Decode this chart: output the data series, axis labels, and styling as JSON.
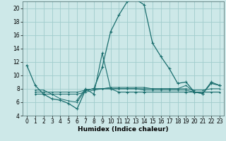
{
  "xlabel": "Humidex (Indice chaleur)",
  "bg_color": "#cde8e8",
  "grid_color": "#a0cccc",
  "line_color": "#1a6e6e",
  "series_main": [
    [
      0,
      11.5
    ],
    [
      1,
      8.5
    ],
    [
      2,
      7.2
    ],
    [
      3,
      6.5
    ],
    [
      4,
      6.3
    ],
    [
      5,
      5.8
    ],
    [
      6,
      5.0
    ],
    [
      7,
      7.8
    ],
    [
      8,
      8.0
    ],
    [
      9,
      11.2
    ],
    [
      10,
      16.5
    ],
    [
      11,
      19.0
    ],
    [
      12,
      21.0
    ],
    [
      13,
      21.3
    ],
    [
      14,
      20.5
    ],
    [
      15,
      14.8
    ],
    [
      16,
      12.8
    ],
    [
      17,
      11.0
    ],
    [
      18,
      8.8
    ],
    [
      19,
      9.0
    ],
    [
      20,
      7.5
    ],
    [
      21,
      7.3
    ],
    [
      22,
      8.8
    ],
    [
      23,
      8.5
    ]
  ],
  "series_spike": [
    [
      6,
      6.3
    ],
    [
      7,
      8.0
    ],
    [
      8,
      7.2
    ],
    [
      9,
      13.3
    ],
    [
      10,
      8.0
    ],
    [
      11,
      7.5
    ],
    [
      12,
      7.5
    ],
    [
      13,
      7.5
    ],
    [
      14,
      7.5
    ],
    [
      19,
      7.5
    ],
    [
      20,
      7.5
    ],
    [
      21,
      7.3
    ],
    [
      22,
      9.0
    ],
    [
      23,
      8.5
    ]
  ],
  "series_flat1": [
    [
      1,
      7.2
    ],
    [
      2,
      7.2
    ],
    [
      3,
      7.2
    ],
    [
      4,
      7.2
    ],
    [
      5,
      7.2
    ],
    [
      6,
      7.2
    ],
    [
      7,
      7.5
    ],
    [
      8,
      7.8
    ],
    [
      9,
      8.0
    ],
    [
      10,
      8.0
    ],
    [
      11,
      8.0
    ],
    [
      12,
      8.0
    ],
    [
      13,
      8.0
    ],
    [
      14,
      7.8
    ],
    [
      15,
      7.8
    ],
    [
      16,
      7.8
    ],
    [
      17,
      7.8
    ],
    [
      18,
      7.8
    ],
    [
      19,
      7.8
    ],
    [
      20,
      7.5
    ],
    [
      21,
      7.5
    ],
    [
      22,
      7.5
    ],
    [
      23,
      7.5
    ]
  ],
  "series_flat2": [
    [
      1,
      7.5
    ],
    [
      2,
      7.5
    ],
    [
      3,
      7.5
    ],
    [
      4,
      7.5
    ],
    [
      5,
      7.5
    ],
    [
      6,
      7.5
    ],
    [
      7,
      7.8
    ],
    [
      8,
      8.0
    ],
    [
      9,
      8.0
    ],
    [
      10,
      8.2
    ],
    [
      11,
      8.2
    ],
    [
      12,
      8.2
    ],
    [
      13,
      8.2
    ],
    [
      14,
      8.2
    ],
    [
      15,
      8.0
    ],
    [
      16,
      8.0
    ],
    [
      17,
      8.0
    ],
    [
      18,
      8.0
    ],
    [
      19,
      8.0
    ],
    [
      20,
      7.8
    ],
    [
      21,
      7.8
    ],
    [
      22,
      8.0
    ],
    [
      23,
      8.0
    ]
  ],
  "series_flat3": [
    [
      1,
      7.8
    ],
    [
      2,
      7.8
    ],
    [
      3,
      7.2
    ],
    [
      4,
      6.5
    ],
    [
      5,
      6.2
    ],
    [
      6,
      6.0
    ],
    [
      7,
      7.8
    ],
    [
      8,
      8.0
    ],
    [
      9,
      8.0
    ],
    [
      10,
      8.0
    ],
    [
      11,
      8.0
    ],
    [
      12,
      8.0
    ],
    [
      13,
      8.0
    ],
    [
      14,
      8.0
    ],
    [
      15,
      8.0
    ],
    [
      16,
      8.0
    ],
    [
      17,
      8.0
    ],
    [
      18,
      8.0
    ],
    [
      19,
      8.5
    ],
    [
      20,
      7.5
    ],
    [
      21,
      7.5
    ],
    [
      22,
      7.5
    ],
    [
      23,
      7.5
    ]
  ],
  "ylim": [
    4,
    21
  ],
  "xlim": [
    -0.5,
    23.5
  ],
  "yticks": [
    4,
    6,
    8,
    10,
    12,
    14,
    16,
    18,
    20
  ],
  "xticks": [
    0,
    1,
    2,
    3,
    4,
    5,
    6,
    7,
    8,
    9,
    10,
    11,
    12,
    13,
    14,
    15,
    16,
    17,
    18,
    19,
    20,
    21,
    22,
    23
  ],
  "xlabel_fontsize": 6.5,
  "tick_fontsize": 5.5
}
